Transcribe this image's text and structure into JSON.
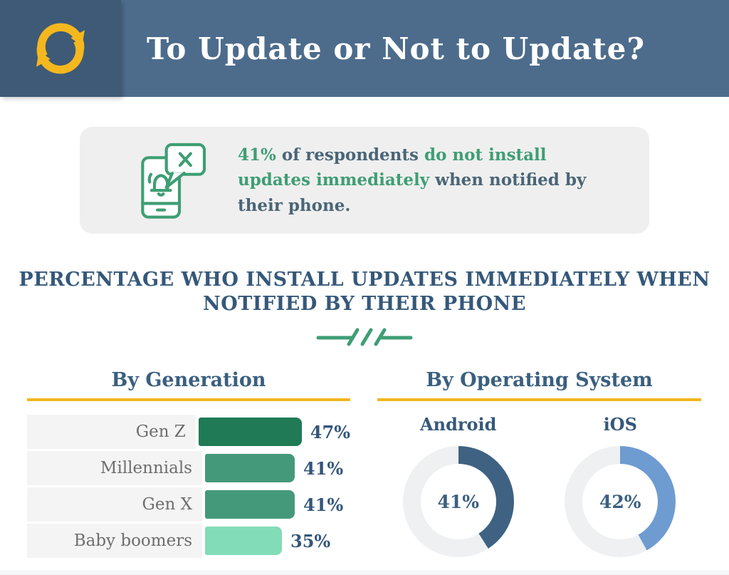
{
  "header": {
    "title": "To Update or Not to Update?",
    "logo_icon": "sync-arrows-icon",
    "bg_color": "#4d6c8c",
    "logo_bg_color": "#3e5a76",
    "accent_yellow": "#f5b71e"
  },
  "callout": {
    "icon": "phone-dismiss-notification-icon",
    "segments": [
      {
        "text": "41%",
        "style": "green"
      },
      {
        "text": " of respondents ",
        "style": "slate"
      },
      {
        "text": "do not install updates immediately",
        "style": "green"
      },
      {
        "text": " when notified by their phone.",
        "style": "slate"
      }
    ],
    "green_color": "#3f9e74",
    "slate_color": "#4a6577"
  },
  "section": {
    "title_line1": "PERCENTAGE WHO INSTALL UPDATES IMMEDIATELY WHEN",
    "title_line2": "NOTIFIED BY THEIR PHONE",
    "divider_icon": "green-slash-divider",
    "title_color": "#35587a"
  },
  "chart_data": [
    {
      "type": "bar",
      "orientation": "horizontal",
      "title": "By Generation",
      "categories": [
        "Gen Z",
        "Millennials",
        "Gen X",
        "Baby boomers"
      ],
      "values": [
        47,
        41,
        41,
        35
      ],
      "value_labels": [
        "47%",
        "41%",
        "41%",
        "35%"
      ],
      "bar_colors": [
        "#1f7a55",
        "#45997b",
        "#45997b",
        "#82dcb8"
      ],
      "xlim": [
        0,
        50
      ],
      "grid": false,
      "legend": "none"
    },
    {
      "type": "pie",
      "subtype": "donut",
      "title": "By Operating System",
      "items": [
        {
          "label": "Android",
          "value": 41,
          "display": "41%",
          "color": "#3f6283"
        },
        {
          "label": "iOS",
          "value": 42,
          "display": "42%",
          "color": "#6e9cd1"
        }
      ],
      "track_color": "#eef0f2",
      "start_angle": "top",
      "direction": "clockwise"
    }
  ]
}
